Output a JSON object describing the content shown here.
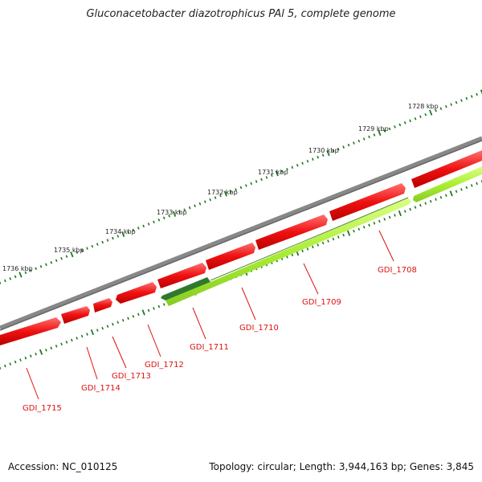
{
  "title": "Gluconacetobacter diazotrophicus PAl 5, complete genome",
  "footer": {
    "accession": "Accession: NC_010125",
    "summary": "Topology: circular; Length: 3,944,163 bp; Genes: 3,845"
  },
  "colors": {
    "backbone": "#808080",
    "forward_gene": "#ee1111",
    "reverse_gene": "#aaee33",
    "reverse_gene_dark": "#338833",
    "tick": "#227722",
    "label": "#dd1111"
  },
  "scale_labels": [
    "1728 kbp",
    "1729 kbp",
    "1730 kbp",
    "1731 kbp",
    "1732 kbp",
    "1733 kbp",
    "1734 kbp",
    "1735 kbp",
    "1736 kbp"
  ],
  "gene_labels": [
    "GDI_1708",
    "GDI_1709",
    "GDI_1710",
    "GDI_1711",
    "GDI_1712",
    "GDI_1713",
    "GDI_1714",
    "GDI_1715"
  ]
}
